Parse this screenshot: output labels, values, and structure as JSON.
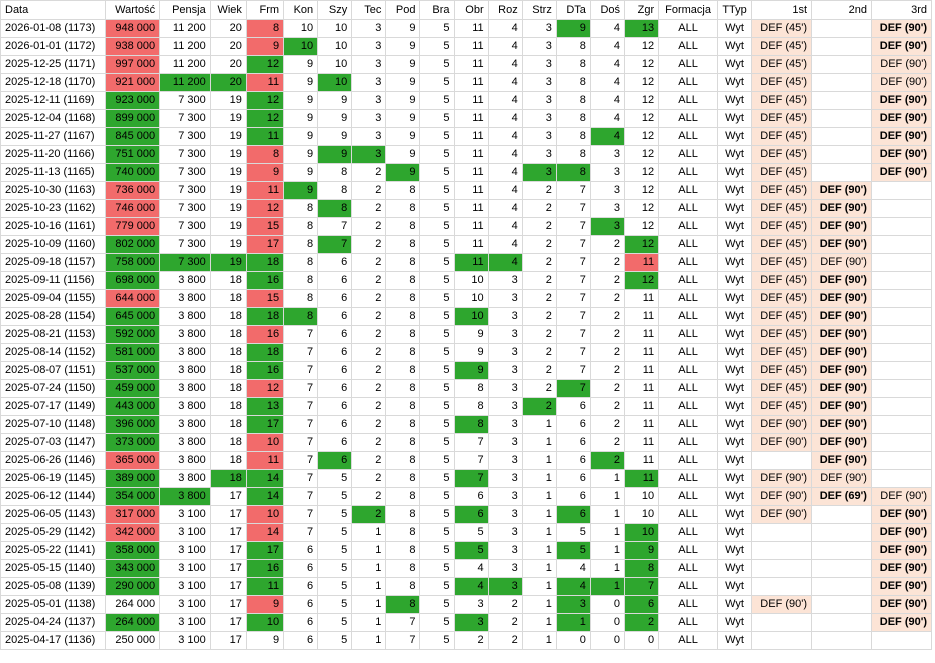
{
  "headers": [
    "Data",
    "Wartość",
    "Pensja",
    "Wiek",
    "Frm",
    "Kon",
    "Szy",
    "Tec",
    "Pod",
    "Bra",
    "Obr",
    "Roz",
    "Strz",
    "DTa",
    "Doś",
    "Zgr",
    "Formacja",
    "TTyp",
    "1st",
    "2nd",
    "3rd"
  ],
  "colors": {
    "green": "#2ea62e",
    "red": "#f26b6b",
    "pink": "#fce4d6"
  },
  "rows": [
    {
      "v": [
        "2026-01-08 (1173)",
        "948 000",
        "11 200",
        "20",
        "8",
        "10",
        "10",
        "3",
        "9",
        "5",
        "11",
        "4",
        "3",
        "9",
        "4",
        "13",
        "ALL",
        "Wyt",
        "DEF (45')",
        "",
        "DEF (90')"
      ],
      "h": {
        "1": "r",
        "4": "r",
        "13": "g",
        "15": "g"
      },
      "p": [
        18,
        20
      ],
      "bd": [
        20
      ]
    },
    {
      "v": [
        "2026-01-01 (1172)",
        "938 000",
        "11 200",
        "20",
        "9",
        "10",
        "10",
        "3",
        "9",
        "5",
        "11",
        "4",
        "3",
        "8",
        "4",
        "12",
        "ALL",
        "Wyt",
        "DEF (45')",
        "",
        "DEF (90')"
      ],
      "h": {
        "1": "r",
        "4": "r",
        "5": "g"
      },
      "p": [
        18,
        20
      ],
      "bd": [
        20
      ]
    },
    {
      "v": [
        "2025-12-25 (1171)",
        "997 000",
        "11 200",
        "20",
        "12",
        "9",
        "10",
        "3",
        "9",
        "5",
        "11",
        "4",
        "3",
        "8",
        "4",
        "12",
        "ALL",
        "Wyt",
        "DEF (45')",
        "",
        "DEF (90')"
      ],
      "h": {
        "1": "r",
        "4": "g"
      },
      "p": [
        18,
        20
      ],
      "bd": []
    },
    {
      "v": [
        "2025-12-18 (1170)",
        "921 000",
        "11 200",
        "20",
        "11",
        "9",
        "10",
        "3",
        "9",
        "5",
        "11",
        "4",
        "3",
        "8",
        "4",
        "12",
        "ALL",
        "Wyt",
        "DEF (45')",
        "",
        "DEF (90')"
      ],
      "h": {
        "1": "r",
        "2": "g",
        "3": "g",
        "4": "r",
        "6": "g"
      },
      "p": [
        18,
        20
      ],
      "bd": []
    },
    {
      "v": [
        "2025-12-11 (1169)",
        "923 000",
        "7 300",
        "19",
        "12",
        "9",
        "9",
        "3",
        "9",
        "5",
        "11",
        "4",
        "3",
        "8",
        "4",
        "12",
        "ALL",
        "Wyt",
        "DEF (45')",
        "",
        "DEF (90')"
      ],
      "h": {
        "1": "g",
        "4": "g"
      },
      "p": [
        18,
        20
      ],
      "bd": [
        20
      ]
    },
    {
      "v": [
        "2025-12-04 (1168)",
        "899 000",
        "7 300",
        "19",
        "12",
        "9",
        "9",
        "3",
        "9",
        "5",
        "11",
        "4",
        "3",
        "8",
        "4",
        "12",
        "ALL",
        "Wyt",
        "DEF (45')",
        "",
        "DEF (90')"
      ],
      "h": {
        "1": "g",
        "4": "g"
      },
      "p": [
        18,
        20
      ],
      "bd": [
        20
      ]
    },
    {
      "v": [
        "2025-11-27 (1167)",
        "845 000",
        "7 300",
        "19",
        "11",
        "9",
        "9",
        "3",
        "9",
        "5",
        "11",
        "4",
        "3",
        "8",
        "4",
        "12",
        "ALL",
        "Wyt",
        "DEF (45')",
        "",
        "DEF (90')"
      ],
      "h": {
        "1": "g",
        "4": "g",
        "14": "g"
      },
      "p": [
        18,
        20
      ],
      "bd": [
        20
      ]
    },
    {
      "v": [
        "2025-11-20 (1166)",
        "751 000",
        "7 300",
        "19",
        "8",
        "9",
        "9",
        "3",
        "9",
        "5",
        "11",
        "4",
        "3",
        "8",
        "3",
        "12",
        "ALL",
        "Wyt",
        "DEF (45')",
        "",
        "DEF (90')"
      ],
      "h": {
        "1": "g",
        "4": "r",
        "6": "g",
        "7": "g"
      },
      "p": [
        18,
        20
      ],
      "bd": [
        20
      ]
    },
    {
      "v": [
        "2025-11-13 (1165)",
        "740 000",
        "7 300",
        "19",
        "9",
        "9",
        "8",
        "2",
        "9",
        "5",
        "11",
        "4",
        "3",
        "8",
        "3",
        "12",
        "ALL",
        "Wyt",
        "DEF (45')",
        "",
        "DEF (90')"
      ],
      "h": {
        "1": "g",
        "4": "r",
        "8": "g",
        "12": "g",
        "13": "g"
      },
      "p": [
        18,
        20
      ],
      "bd": [
        20
      ]
    },
    {
      "v": [
        "2025-10-30 (1163)",
        "736 000",
        "7 300",
        "19",
        "11",
        "9",
        "8",
        "2",
        "8",
        "5",
        "11",
        "4",
        "2",
        "7",
        "3",
        "12",
        "ALL",
        "Wyt",
        "DEF (45')",
        "DEF (90')",
        ""
      ],
      "h": {
        "1": "r",
        "4": "r",
        "5": "g"
      },
      "p": [
        18,
        19
      ],
      "bd": [
        19
      ]
    },
    {
      "v": [
        "2025-10-23 (1162)",
        "746 000",
        "7 300",
        "19",
        "12",
        "8",
        "8",
        "2",
        "8",
        "5",
        "11",
        "4",
        "2",
        "7",
        "3",
        "12",
        "ALL",
        "Wyt",
        "DEF (45')",
        "DEF (90')",
        ""
      ],
      "h": {
        "1": "r",
        "4": "r",
        "6": "g"
      },
      "p": [
        18,
        19
      ],
      "bd": [
        19
      ]
    },
    {
      "v": [
        "2025-10-16 (1161)",
        "779 000",
        "7 300",
        "19",
        "15",
        "8",
        "7",
        "2",
        "8",
        "5",
        "11",
        "4",
        "2",
        "7",
        "3",
        "12",
        "ALL",
        "Wyt",
        "DEF (45')",
        "DEF (90')",
        ""
      ],
      "h": {
        "1": "r",
        "4": "r",
        "14": "g"
      },
      "p": [
        18,
        19
      ],
      "bd": [
        19
      ]
    },
    {
      "v": [
        "2025-10-09 (1160)",
        "802 000",
        "7 300",
        "19",
        "17",
        "8",
        "7",
        "2",
        "8",
        "5",
        "11",
        "4",
        "2",
        "7",
        "2",
        "12",
        "ALL",
        "Wyt",
        "DEF (45')",
        "DEF (90')",
        ""
      ],
      "h": {
        "1": "g",
        "4": "r",
        "6": "g",
        "15": "g"
      },
      "p": [
        18,
        19
      ],
      "bd": [
        19
      ]
    },
    {
      "v": [
        "2025-09-18 (1157)",
        "758 000",
        "7 300",
        "19",
        "18",
        "8",
        "6",
        "2",
        "8",
        "5",
        "11",
        "4",
        "2",
        "7",
        "2",
        "11",
        "ALL",
        "Wyt",
        "DEF (45')",
        "DEF (90')",
        ""
      ],
      "h": {
        "1": "g",
        "2": "g",
        "3": "g",
        "4": "g",
        "10": "g",
        "11": "g",
        "15": "r"
      },
      "p": [
        18,
        19
      ],
      "bd": []
    },
    {
      "v": [
        "2025-09-11 (1156)",
        "698 000",
        "3 800",
        "18",
        "16",
        "8",
        "6",
        "2",
        "8",
        "5",
        "10",
        "3",
        "2",
        "7",
        "2",
        "12",
        "ALL",
        "Wyt",
        "DEF (45')",
        "DEF (90')",
        ""
      ],
      "h": {
        "1": "g",
        "4": "g",
        "15": "g"
      },
      "p": [
        18,
        19
      ],
      "bd": [
        19
      ]
    },
    {
      "v": [
        "2025-09-04 (1155)",
        "644 000",
        "3 800",
        "18",
        "15",
        "8",
        "6",
        "2",
        "8",
        "5",
        "10",
        "3",
        "2",
        "7",
        "2",
        "11",
        "ALL",
        "Wyt",
        "DEF (45')",
        "DEF (90')",
        ""
      ],
      "h": {
        "1": "r",
        "4": "r"
      },
      "p": [
        18,
        19
      ],
      "bd": [
        19
      ]
    },
    {
      "v": [
        "2025-08-28 (1154)",
        "645 000",
        "3 800",
        "18",
        "18",
        "8",
        "6",
        "2",
        "8",
        "5",
        "10",
        "3",
        "2",
        "7",
        "2",
        "11",
        "ALL",
        "Wyt",
        "DEF (45')",
        "DEF (90')",
        ""
      ],
      "h": {
        "1": "g",
        "4": "g",
        "5": "g",
        "10": "g"
      },
      "p": [
        18,
        19
      ],
      "bd": [
        19
      ]
    },
    {
      "v": [
        "2025-08-21 (1153)",
        "592 000",
        "3 800",
        "18",
        "16",
        "7",
        "6",
        "2",
        "8",
        "5",
        "9",
        "3",
        "2",
        "7",
        "2",
        "11",
        "ALL",
        "Wyt",
        "DEF (45')",
        "DEF (90')",
        ""
      ],
      "h": {
        "1": "g",
        "4": "r"
      },
      "p": [
        18,
        19
      ],
      "bd": [
        19
      ]
    },
    {
      "v": [
        "2025-08-14 (1152)",
        "581 000",
        "3 800",
        "18",
        "18",
        "7",
        "6",
        "2",
        "8",
        "5",
        "9",
        "3",
        "2",
        "7",
        "2",
        "11",
        "ALL",
        "Wyt",
        "DEF (45')",
        "DEF (90')",
        ""
      ],
      "h": {
        "1": "g",
        "4": "g"
      },
      "p": [
        18,
        19
      ],
      "bd": [
        19
      ]
    },
    {
      "v": [
        "2025-08-07 (1151)",
        "537 000",
        "3 800",
        "18",
        "16",
        "7",
        "6",
        "2",
        "8",
        "5",
        "9",
        "3",
        "2",
        "7",
        "2",
        "11",
        "ALL",
        "Wyt",
        "DEF (45')",
        "DEF (90')",
        ""
      ],
      "h": {
        "1": "g",
        "4": "g",
        "10": "g"
      },
      "p": [
        18,
        19
      ],
      "bd": [
        19
      ]
    },
    {
      "v": [
        "2025-07-24 (1150)",
        "459 000",
        "3 800",
        "18",
        "12",
        "7",
        "6",
        "2",
        "8",
        "5",
        "8",
        "3",
        "2",
        "7",
        "2",
        "11",
        "ALL",
        "Wyt",
        "DEF (45')",
        "DEF (90')",
        ""
      ],
      "h": {
        "1": "g",
        "4": "r",
        "13": "g"
      },
      "p": [
        18,
        19
      ],
      "bd": [
        19
      ]
    },
    {
      "v": [
        "2025-07-17 (1149)",
        "443 000",
        "3 800",
        "18",
        "13",
        "7",
        "6",
        "2",
        "8",
        "5",
        "8",
        "3",
        "2",
        "6",
        "2",
        "11",
        "ALL",
        "Wyt",
        "DEF (45')",
        "DEF (90')",
        ""
      ],
      "h": {
        "1": "g",
        "4": "g",
        "12": "g"
      },
      "p": [
        18,
        19
      ],
      "bd": [
        19
      ]
    },
    {
      "v": [
        "2025-07-10 (1148)",
        "396 000",
        "3 800",
        "18",
        "17",
        "7",
        "6",
        "2",
        "8",
        "5",
        "8",
        "3",
        "1",
        "6",
        "2",
        "11",
        "ALL",
        "Wyt",
        "DEF (90')",
        "DEF (90')",
        ""
      ],
      "h": {
        "1": "g",
        "4": "g",
        "10": "g"
      },
      "p": [
        18,
        19
      ],
      "bd": [
        19
      ]
    },
    {
      "v": [
        "2025-07-03 (1147)",
        "373 000",
        "3 800",
        "18",
        "10",
        "7",
        "6",
        "2",
        "8",
        "5",
        "7",
        "3",
        "1",
        "6",
        "2",
        "11",
        "ALL",
        "Wyt",
        "DEF (90')",
        "DEF (90')",
        ""
      ],
      "h": {
        "1": "g",
        "4": "r"
      },
      "p": [
        18,
        19
      ],
      "bd": [
        19
      ]
    },
    {
      "v": [
        "2025-06-26 (1146)",
        "365 000",
        "3 800",
        "18",
        "11",
        "7",
        "6",
        "2",
        "8",
        "5",
        "7",
        "3",
        "1",
        "6",
        "2",
        "11",
        "ALL",
        "Wyt",
        "",
        "DEF (90')",
        ""
      ],
      "h": {
        "1": "r",
        "4": "r",
        "6": "g",
        "14": "g"
      },
      "p": [
        19
      ],
      "bd": [
        19
      ]
    },
    {
      "v": [
        "2025-06-19 (1145)",
        "389 000",
        "3 800",
        "18",
        "14",
        "7",
        "5",
        "2",
        "8",
        "5",
        "7",
        "3",
        "1",
        "6",
        "1",
        "11",
        "ALL",
        "Wyt",
        "DEF (90')",
        "DEF (90')",
        ""
      ],
      "h": {
        "1": "g",
        "3": "g",
        "4": "g",
        "10": "g",
        "15": "g"
      },
      "p": [
        18,
        19
      ],
      "bd": []
    },
    {
      "v": [
        "2025-06-12 (1144)",
        "354 000",
        "3 800",
        "17",
        "14",
        "7",
        "5",
        "2",
        "8",
        "5",
        "6",
        "3",
        "1",
        "6",
        "1",
        "10",
        "ALL",
        "Wyt",
        "DEF (90')",
        "DEF (69')",
        "DEF (90')"
      ],
      "h": {
        "1": "g",
        "2": "g",
        "4": "g"
      },
      "p": [
        18,
        19,
        20
      ],
      "bd": [
        19
      ]
    },
    {
      "v": [
        "2025-06-05 (1143)",
        "317 000",
        "3 100",
        "17",
        "10",
        "7",
        "5",
        "2",
        "8",
        "5",
        "6",
        "3",
        "1",
        "6",
        "1",
        "10",
        "ALL",
        "Wyt",
        "DEF (90')",
        "",
        "DEF (90')"
      ],
      "h": {
        "1": "r",
        "4": "r",
        "7": "g",
        "10": "g",
        "13": "g"
      },
      "p": [
        18,
        20
      ],
      "bd": [
        20
      ]
    },
    {
      "v": [
        "2025-05-29 (1142)",
        "342 000",
        "3 100",
        "17",
        "14",
        "7",
        "5",
        "1",
        "8",
        "5",
        "5",
        "3",
        "1",
        "5",
        "1",
        "10",
        "ALL",
        "Wyt",
        "",
        "",
        "DEF (90')"
      ],
      "h": {
        "1": "r",
        "4": "r",
        "15": "g"
      },
      "p": [
        20
      ],
      "bd": [
        20
      ]
    },
    {
      "v": [
        "2025-05-22 (1141)",
        "358 000",
        "3 100",
        "17",
        "17",
        "6",
        "5",
        "1",
        "8",
        "5",
        "5",
        "3",
        "1",
        "5",
        "1",
        "9",
        "ALL",
        "Wyt",
        "",
        "",
        "DEF (90')"
      ],
      "h": {
        "1": "g",
        "4": "g",
        "10": "g",
        "13": "g",
        "15": "g"
      },
      "p": [
        20
      ],
      "bd": [
        20
      ]
    },
    {
      "v": [
        "2025-05-15 (1140)",
        "343 000",
        "3 100",
        "17",
        "16",
        "6",
        "5",
        "1",
        "8",
        "5",
        "4",
        "3",
        "1",
        "4",
        "1",
        "8",
        "ALL",
        "Wyt",
        "",
        "",
        "DEF (90')"
      ],
      "h": {
        "1": "g",
        "4": "g",
        "15": "g"
      },
      "p": [
        20
      ],
      "bd": [
        20
      ]
    },
    {
      "v": [
        "2025-05-08 (1139)",
        "290 000",
        "3 100",
        "17",
        "11",
        "6",
        "5",
        "1",
        "8",
        "5",
        "4",
        "3",
        "1",
        "4",
        "1",
        "7",
        "ALL",
        "Wyt",
        "",
        "",
        "DEF (90')"
      ],
      "h": {
        "1": "g",
        "4": "g",
        "10": "g",
        "11": "g",
        "13": "g",
        "14": "g",
        "15": "g"
      },
      "p": [
        20
      ],
      "bd": [
        20
      ]
    },
    {
      "v": [
        "2025-05-01 (1138)",
        "264 000",
        "3 100",
        "17",
        "9",
        "6",
        "5",
        "1",
        "8",
        "5",
        "3",
        "2",
        "1",
        "3",
        "0",
        "6",
        "ALL",
        "Wyt",
        "DEF (90')",
        "",
        "DEF (90')"
      ],
      "h": {
        "4": "r",
        "8": "g",
        "13": "g",
        "15": "g"
      },
      "p": [
        18,
        20
      ],
      "bd": [
        20
      ]
    },
    {
      "v": [
        "2025-04-24 (1137)",
        "264 000",
        "3 100",
        "17",
        "10",
        "6",
        "5",
        "1",
        "7",
        "5",
        "3",
        "2",
        "1",
        "1",
        "0",
        "2",
        "ALL",
        "Wyt",
        "",
        "",
        "DEF (90')"
      ],
      "h": {
        "1": "g",
        "4": "g",
        "10": "g",
        "13": "g",
        "15": "g"
      },
      "p": [
        20
      ],
      "bd": [
        20
      ]
    },
    {
      "v": [
        "2025-04-17 (1136)",
        "250 000",
        "3 100",
        "17",
        "9",
        "6",
        "5",
        "1",
        "7",
        "5",
        "2",
        "2",
        "1",
        "0",
        "0",
        "0",
        "ALL",
        "Wyt",
        "",
        "",
        ""
      ],
      "h": {},
      "p": [],
      "bd": []
    }
  ]
}
